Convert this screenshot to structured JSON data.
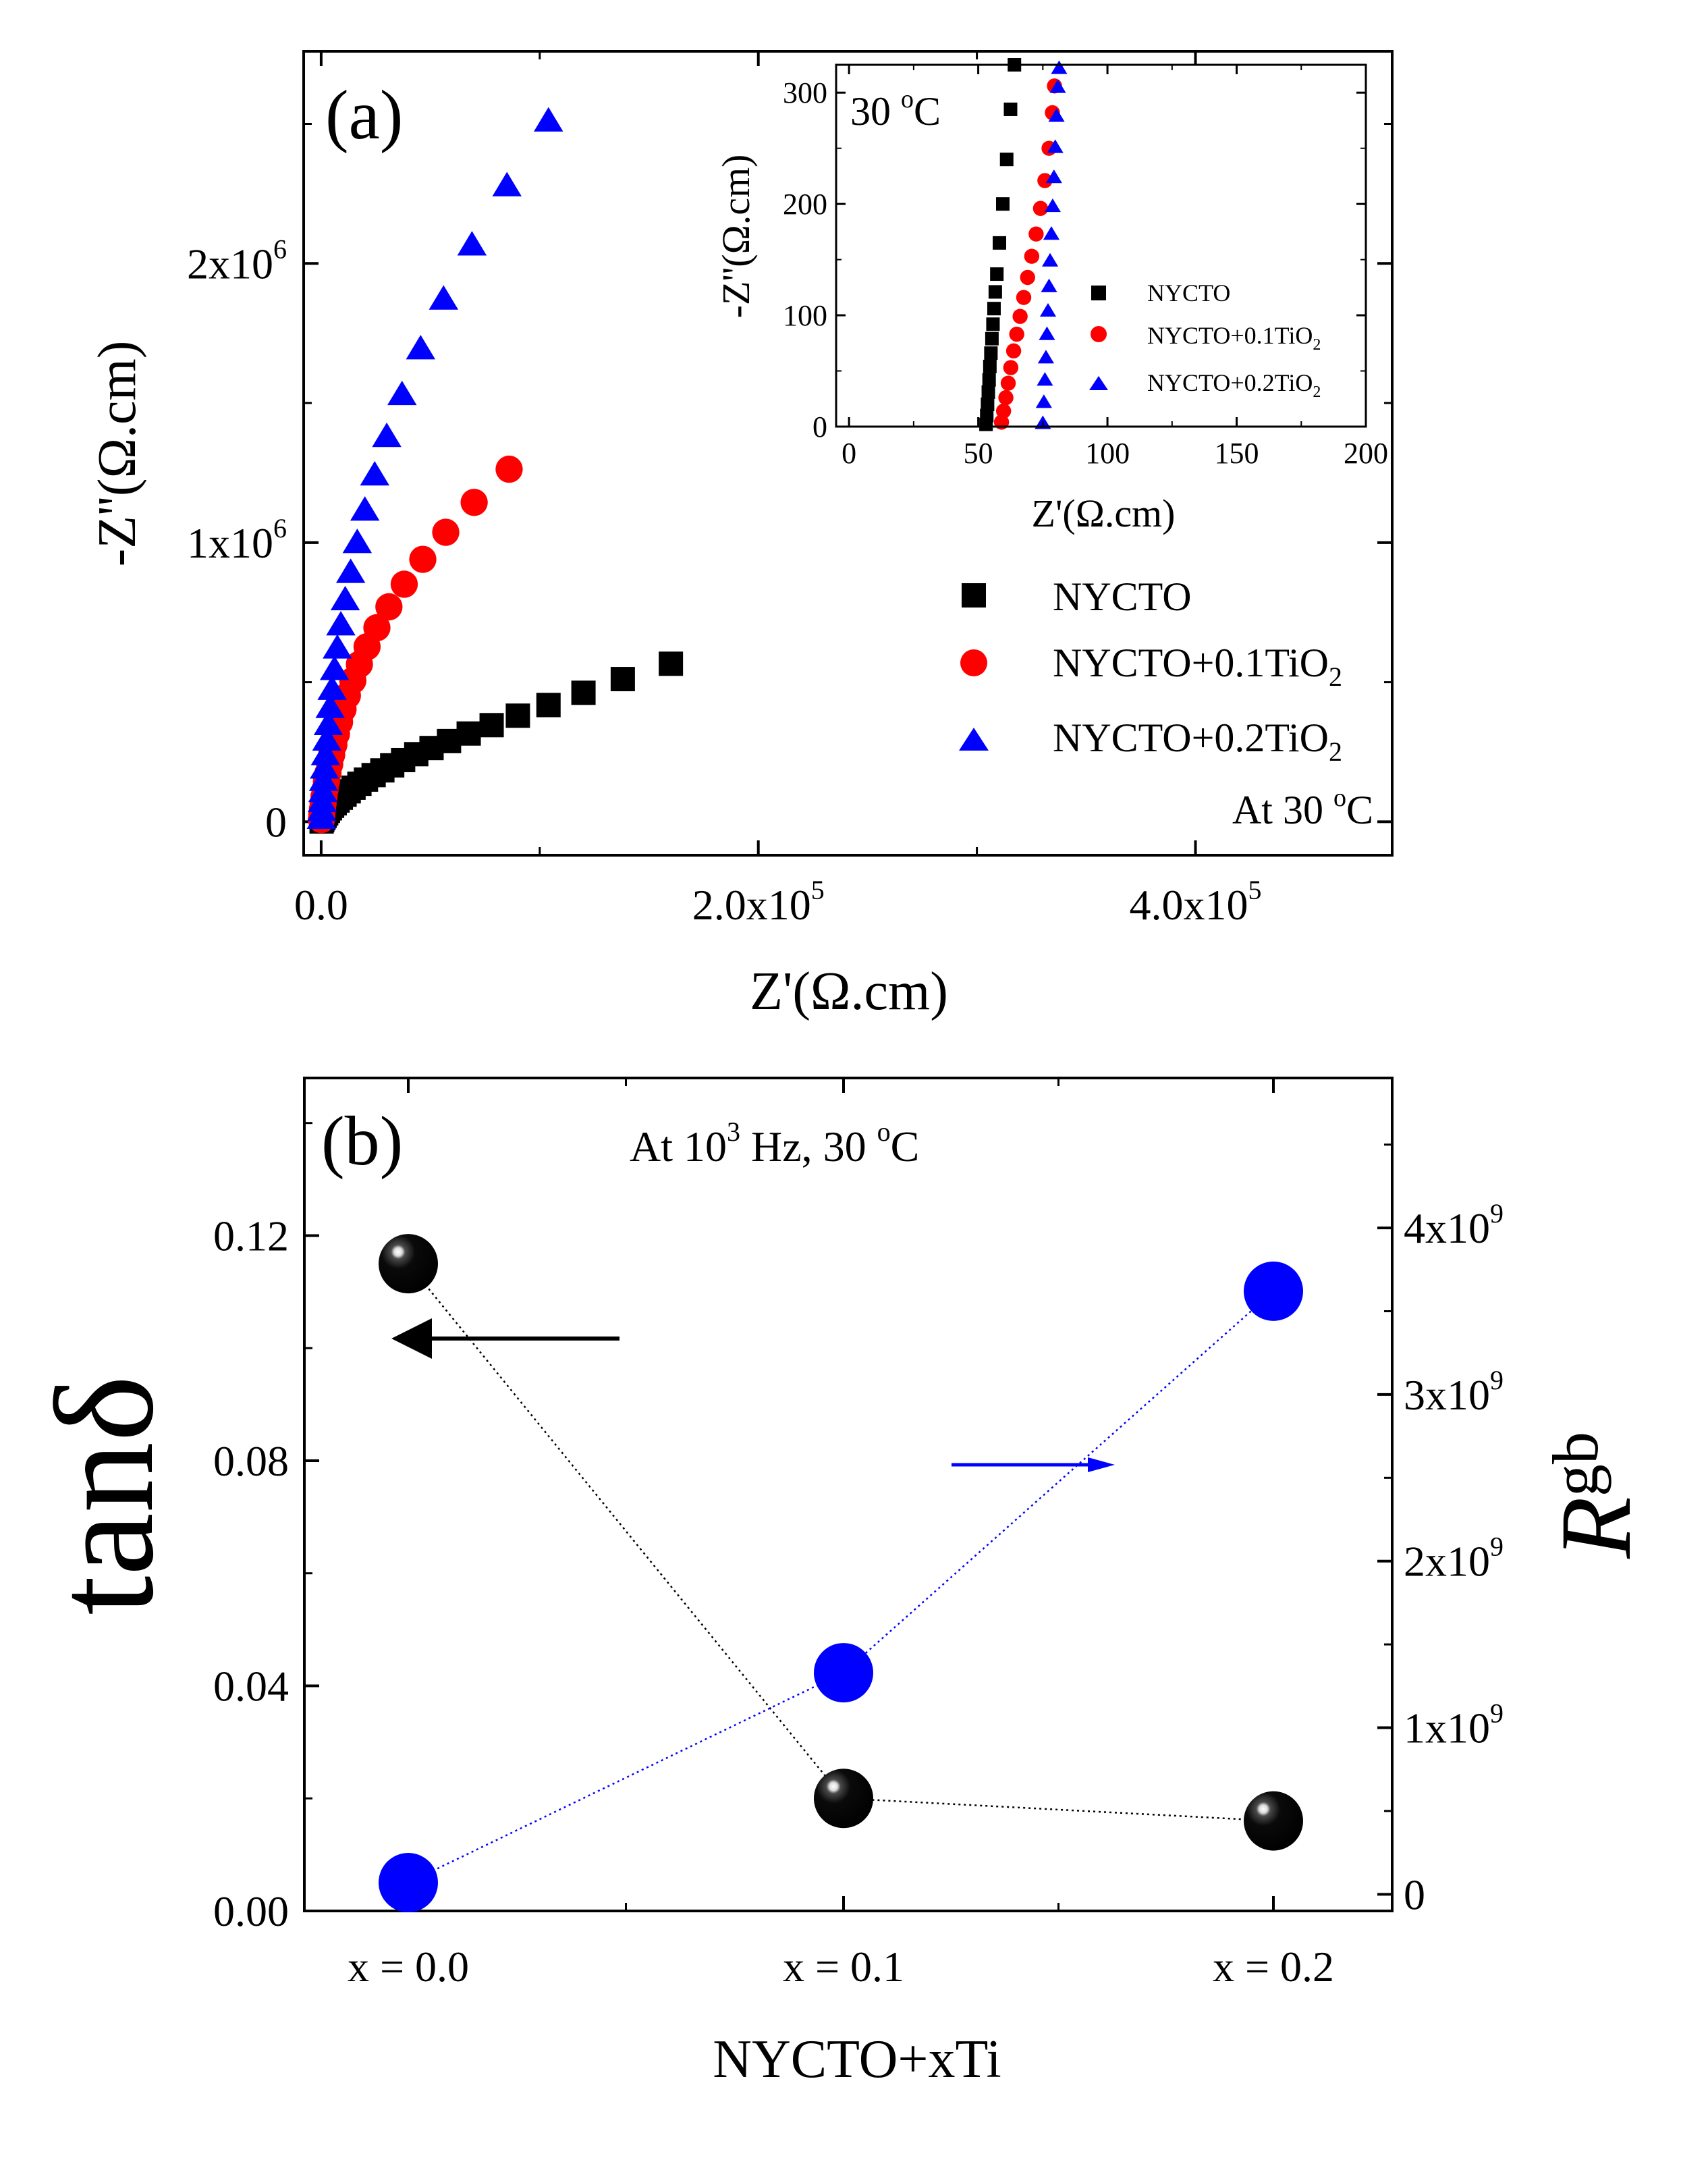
{
  "chart_data": [
    {
      "id": "a",
      "type": "scatter",
      "panel_label": "(a)",
      "xlabel": "Z'(Ω.cm)",
      "ylabel": "-Z''(Ω.cm)",
      "xlim": [
        -8000,
        490000
      ],
      "ylim": [
        -120000,
        2760000
      ],
      "x_ticks": [
        {
          "value": 0,
          "label": "0.0"
        },
        {
          "value": 200000,
          "label": "2.0x10",
          "exp": "5"
        },
        {
          "value": 400000,
          "label": "4.0x10",
          "exp": "5"
        }
      ],
      "y_ticks": [
        {
          "value": 0,
          "label": "0"
        },
        {
          "value": 1000000,
          "label": "1x10",
          "exp": "6"
        },
        {
          "value": 2000000,
          "label": "2x10",
          "exp": "6"
        }
      ],
      "annotation": {
        "text": "At 30 ",
        "sup": "o",
        "tail": "C"
      },
      "legend_position": "right",
      "series": [
        {
          "name": "NYCTO",
          "marker": "square",
          "color": "#000000",
          "x": [
            200,
            500,
            1000,
            1600,
            2300,
            3100,
            4000,
            5000,
            6200,
            7500,
            9000,
            10700,
            12600,
            14800,
            17500,
            20500,
            24000,
            28000,
            32500,
            37500,
            43500,
            50500,
            58500,
            67500,
            78000,
            90000,
            104000,
            120000,
            138000,
            160000
          ],
          "y": [
            1000,
            6000,
            13000,
            21000,
            30000,
            39000,
            48000,
            57000,
            66000,
            76000,
            86000,
            97000,
            109000,
            122000,
            136000,
            151000,
            167000,
            184000,
            202000,
            221000,
            242000,
            264000,
            289000,
            316000,
            346000,
            380000,
            418000,
            462000,
            511000,
            566000
          ]
        },
        {
          "name": "NYCTO+0.1TiO",
          "name_sub": "2",
          "marker": "circle",
          "color": "#ff0000",
          "x": [
            100,
            300,
            600,
            900,
            1300,
            1800,
            2400,
            3100,
            3900,
            4800,
            5800,
            7000,
            8400,
            10000,
            12000,
            14500,
            17500,
            21000,
            25500,
            31000,
            38000,
            46500,
            57000,
            70000,
            86000
          ],
          "y": [
            8000,
            25000,
            45000,
            66000,
            90000,
            116000,
            144000,
            174000,
            206000,
            240000,
            276000,
            315000,
            357000,
            403000,
            452000,
            506000,
            564000,
            627000,
            695000,
            770000,
            851000,
            940000,
            1037000,
            1144000,
            1263000
          ]
        },
        {
          "name": "NYCTO+0.2TiO",
          "name_sub": "2",
          "marker": "triangle",
          "color": "#0000ff",
          "x": [
            100,
            250,
            500,
            800,
            1100,
            1500,
            2000,
            2600,
            3300,
            4100,
            5000,
            6100,
            7400,
            9000,
            11000,
            13500,
            16500,
            20000,
            24500,
            30000,
            37000,
            45500,
            56000,
            69000,
            85000,
            104000
          ],
          "y": [
            12000,
            40000,
            72000,
            108000,
            148000,
            192000,
            240000,
            292000,
            348000,
            409000,
            474000,
            545000,
            622000,
            705000,
            795000,
            893000,
            1000000,
            1116000,
            1242000,
            1380000,
            1530000,
            1694000,
            1872000,
            2066000,
            2278000,
            2510000
          ]
        }
      ]
    },
    {
      "id": "a-inset",
      "type": "scatter",
      "xlabel": "Z'(Ω.cm)",
      "ylabel": "-Z''(Ω.cm)",
      "xlim": [
        -5,
        200
      ],
      "ylim": [
        0,
        325
      ],
      "x_ticks": [
        {
          "value": 0,
          "label": "0"
        },
        {
          "value": 50,
          "label": "50"
        },
        {
          "value": 100,
          "label": "100"
        },
        {
          "value": 150,
          "label": "150"
        },
        {
          "value": 200,
          "label": "200"
        }
      ],
      "y_ticks": [
        {
          "value": 0,
          "label": "0"
        },
        {
          "value": 100,
          "label": "100"
        },
        {
          "value": 200,
          "label": "200"
        },
        {
          "value": 300,
          "label": "300"
        }
      ],
      "annotation": {
        "text": "30 ",
        "sup": "o",
        "tail": "C"
      },
      "series": [
        {
          "name": "NYCTO",
          "marker": "square",
          "color": "#000000",
          "x": [
            53.0,
            53.3,
            53.6,
            53.9,
            54.2,
            54.5,
            54.9,
            55.3,
            55.7,
            56.1,
            56.6,
            57.2,
            58.2,
            59.5,
            61.0,
            62.5,
            64.0
          ],
          "y": [
            2,
            10,
            20,
            31,
            42,
            54,
            66,
            79,
            92,
            106,
            121,
            137,
            165,
            200,
            240,
            285,
            325
          ]
        },
        {
          "name": "NYCTO+0.1TiO",
          "name_sub": "2",
          "marker": "circle",
          "color": "#ff0000",
          "x": [
            59.0,
            59.8,
            60.7,
            61.6,
            62.6,
            63.7,
            64.9,
            66.2,
            67.6,
            69.1,
            70.7,
            72.4,
            74.1,
            75.8,
            77.4,
            78.7,
            79.5
          ],
          "y": [
            4,
            14,
            26,
            39,
            53,
            68,
            83,
            99,
            116,
            134,
            153,
            173,
            196,
            221,
            250,
            282,
            306
          ]
        },
        {
          "name": "NYCTO+0.2TiO",
          "name_sub": "2",
          "marker": "triangle",
          "color": "#0000ff",
          "x": [
            75.0,
            75.4,
            75.8,
            76.2,
            76.6,
            77.0,
            77.4,
            77.8,
            78.3,
            78.8,
            79.3,
            79.8,
            80.3,
            80.8,
            81.3
          ],
          "y": [
            3,
            22,
            42,
            62,
            83,
            104,
            126,
            149,
            173,
            198,
            224,
            251,
            279,
            305,
            322
          ]
        }
      ]
    },
    {
      "id": "b",
      "type": "scatter",
      "panel_label": "(b)",
      "title": {
        "text": "At 10",
        "sup": "3",
        "tail": " Hz, 30 ",
        "sup2": "o",
        "tail2": "C"
      },
      "xlabel": "NYCTO+xTi",
      "categories": [
        "x = 0.0",
        "x = 0.1",
        "x = 0.2"
      ],
      "ylabel_left": "tanδ",
      "ylabel_right": "R",
      "ylabel_right_sub": "gb",
      "ylim_left": [
        0,
        0.148
      ],
      "ylim_right": [
        -100000000,
        4900000000
      ],
      "left_ticks": [
        {
          "value": 0,
          "label": "0.00"
        },
        {
          "value": 0.04,
          "label": "0.04"
        },
        {
          "value": 0.08,
          "label": "0.08"
        },
        {
          "value": 0.12,
          "label": "0.12"
        }
      ],
      "right_ticks": [
        {
          "value": 0,
          "label": "0"
        },
        {
          "value": 1000000000,
          "label": "1x10",
          "exp": "9"
        },
        {
          "value": 2000000000,
          "label": "2x10",
          "exp": "9"
        },
        {
          "value": 3000000000,
          "label": "3x10",
          "exp": "9"
        },
        {
          "value": 4000000000,
          "label": "4x10",
          "exp": "9"
        }
      ],
      "series": [
        {
          "name": "tanδ",
          "axis": "left",
          "color": "#000000",
          "values": [
            0.115,
            0.02,
            0.016
          ]
        },
        {
          "name": "Rgb",
          "axis": "right",
          "color": "#0000ff",
          "values": [
            70000000,
            1330000000,
            3620000000
          ]
        }
      ]
    }
  ]
}
